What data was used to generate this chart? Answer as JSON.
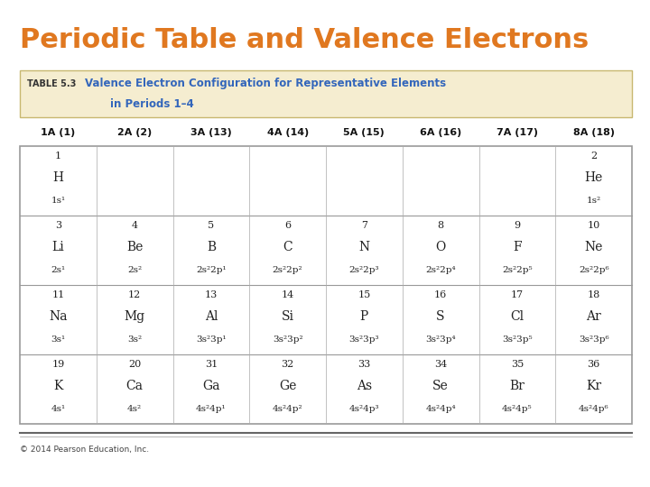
{
  "title": "Periodic Table and Valence Electrons",
  "title_color": "#E07820",
  "title_fontsize": 22,
  "bg_color": "#FFFFFF",
  "table_header_bg": "#F5EDD0",
  "table_header_border": "#C8B870",
  "col_headers": [
    "1A (1)",
    "2A (2)",
    "3A (13)",
    "4A (14)",
    "5A (15)",
    "6A (16)",
    "7A (17)",
    "8A (18)"
  ],
  "table_label": "TABLE 5.3",
  "table_title_line1": "Valence Electron Configuration for Representative Elements",
  "table_title_line2": "in Periods 1–4",
  "table_title_color": "#3366BB",
  "table_label_color": "#333333",
  "footer": "© 2014 Pearson Education, Inc.",
  "rows": [
    {
      "cells": [
        {
          "num": "1",
          "sym": "H",
          "cfg": "1s¹"
        },
        {
          "num": "",
          "sym": "",
          "cfg": ""
        },
        {
          "num": "",
          "sym": "",
          "cfg": ""
        },
        {
          "num": "",
          "sym": "",
          "cfg": ""
        },
        {
          "num": "",
          "sym": "",
          "cfg": ""
        },
        {
          "num": "",
          "sym": "",
          "cfg": ""
        },
        {
          "num": "",
          "sym": "",
          "cfg": ""
        },
        {
          "num": "2",
          "sym": "He",
          "cfg": "1s²"
        }
      ]
    },
    {
      "cells": [
        {
          "num": "3",
          "sym": "Li",
          "cfg": "2s¹"
        },
        {
          "num": "4",
          "sym": "Be",
          "cfg": "2s²"
        },
        {
          "num": "5",
          "sym": "B",
          "cfg": "2s²2p¹"
        },
        {
          "num": "6",
          "sym": "C",
          "cfg": "2s²2p²"
        },
        {
          "num": "7",
          "sym": "N",
          "cfg": "2s²2p³"
        },
        {
          "num": "8",
          "sym": "O",
          "cfg": "2s²2p⁴"
        },
        {
          "num": "9",
          "sym": "F",
          "cfg": "2s²2p⁵"
        },
        {
          "num": "10",
          "sym": "Ne",
          "cfg": "2s²2p⁶"
        }
      ]
    },
    {
      "cells": [
        {
          "num": "11",
          "sym": "Na",
          "cfg": "3s¹"
        },
        {
          "num": "12",
          "sym": "Mg",
          "cfg": "3s²"
        },
        {
          "num": "13",
          "sym": "Al",
          "cfg": "3s²3p¹"
        },
        {
          "num": "14",
          "sym": "Si",
          "cfg": "3s²3p²"
        },
        {
          "num": "15",
          "sym": "P",
          "cfg": "3s²3p³"
        },
        {
          "num": "16",
          "sym": "S",
          "cfg": "3s²3p⁴"
        },
        {
          "num": "17",
          "sym": "Cl",
          "cfg": "3s²3p⁵"
        },
        {
          "num": "18",
          "sym": "Ar",
          "cfg": "3s²3p⁶"
        }
      ]
    },
    {
      "cells": [
        {
          "num": "19",
          "sym": "K",
          "cfg": "4s¹"
        },
        {
          "num": "20",
          "sym": "Ca",
          "cfg": "4s²"
        },
        {
          "num": "31",
          "sym": "Ga",
          "cfg": "4s²4p¹"
        },
        {
          "num": "32",
          "sym": "Ge",
          "cfg": "4s²4p²"
        },
        {
          "num": "33",
          "sym": "As",
          "cfg": "4s²4p³"
        },
        {
          "num": "34",
          "sym": "Se",
          "cfg": "4s²4p⁴"
        },
        {
          "num": "35",
          "sym": "Br",
          "cfg": "4s²4p⁵"
        },
        {
          "num": "36",
          "sym": "Kr",
          "cfg": "4s²4p⁶"
        }
      ]
    }
  ]
}
